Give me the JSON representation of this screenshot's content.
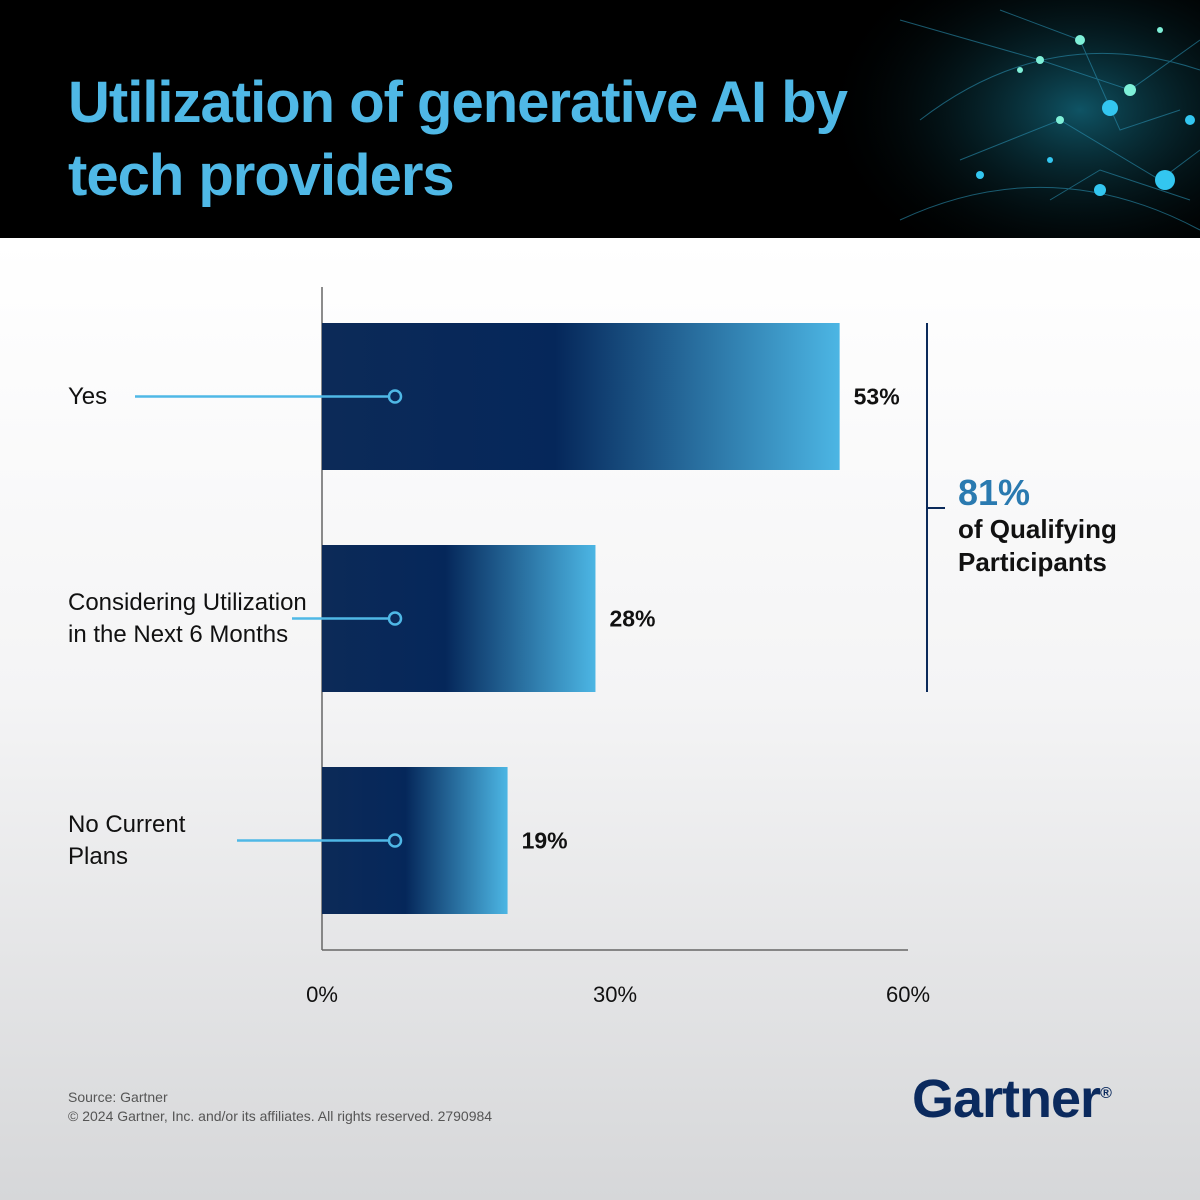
{
  "chart_data": {
    "type": "bar",
    "orientation": "horizontal",
    "title": "Utilization of generative AI by tech providers",
    "categories": [
      "Yes",
      "Considering Utilization in the Next 6 Months",
      "No Current Plans"
    ],
    "values": [
      53,
      28,
      19
    ],
    "value_labels": [
      "53%",
      "28%",
      "19%"
    ],
    "xlim": [
      0,
      60
    ],
    "xticks": [
      {
        "value": 0,
        "label": "0%"
      },
      {
        "value": 30,
        "label": "30%"
      },
      {
        "value": 60,
        "label": "60%"
      }
    ],
    "color": "#0b2a5a",
    "annotation": {
      "value": 81,
      "label": "81%",
      "text": "of Qualifying Participants"
    },
    "source": "Source: Gartner",
    "copyright": "© 2024 Gartner, Inc. and/or its affiliates. All rights reserved. 2790984",
    "logo": "Gartner",
    "logo_mark": "®"
  }
}
